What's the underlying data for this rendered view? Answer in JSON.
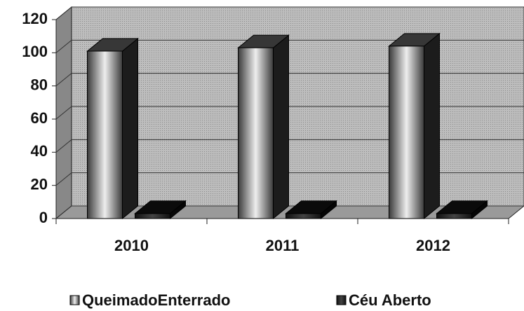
{
  "chart_data": {
    "type": "bar3d",
    "categories": [
      "2010",
      "2011",
      "2012"
    ],
    "series": [
      {
        "name": "QueimadoEnterrado",
        "color": "#b8b8b8",
        "values": [
          101,
          103,
          104
        ]
      },
      {
        "name": "Céu Aberto",
        "color": "#262626",
        "values": [
          3,
          3,
          3
        ]
      }
    ],
    "ylim": [
      0,
      120
    ],
    "yticks": [
      0,
      20,
      40,
      60,
      80,
      100,
      120
    ],
    "grid": true,
    "legend": "bottom"
  }
}
